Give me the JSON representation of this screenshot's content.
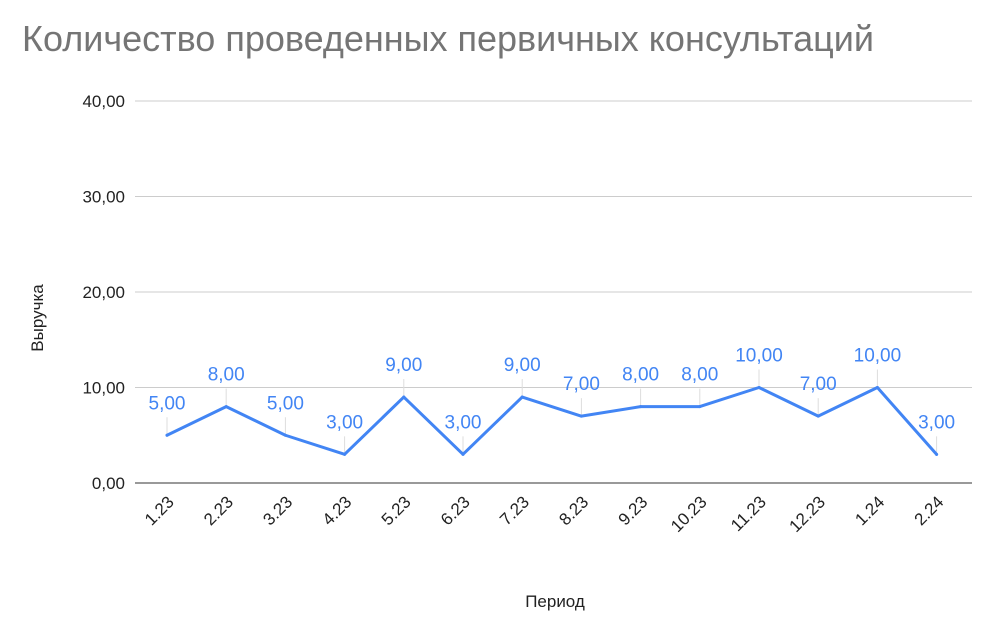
{
  "chart_data": {
    "type": "line",
    "title": "Количество проведенных первичных консультаций",
    "xlabel": "Период",
    "ylabel": "Выручка",
    "categories": [
      "1.23",
      "2.23",
      "3.23",
      "4.23",
      "5.23",
      "6.23",
      "7.23",
      "8.23",
      "9.23",
      "10.23",
      "11.23",
      "12.23",
      "1.24",
      "2.24"
    ],
    "series": [
      {
        "values": [
          5,
          8,
          5,
          3,
          9,
          3,
          9,
          7,
          8,
          8,
          10,
          7,
          10,
          3
        ],
        "data_labels": [
          "5,00",
          "8,00",
          "5,00",
          "3,00",
          "9,00",
          "3,00",
          "9,00",
          "7,00",
          "8,00",
          "8,00",
          "10,00",
          "7,00",
          "10,00",
          "3,00"
        ]
      }
    ],
    "ylim": [
      0,
      40
    ],
    "yticks": [
      0,
      10,
      20,
      30,
      40
    ],
    "ytick_labels": [
      "0,00",
      "10,00",
      "20,00",
      "30,00",
      "40,00"
    ],
    "grid": true,
    "legend": "none",
    "colors": {
      "line": "#4285F4",
      "grid": "#cccccc",
      "title": "#757575",
      "text": "#222222"
    }
  }
}
